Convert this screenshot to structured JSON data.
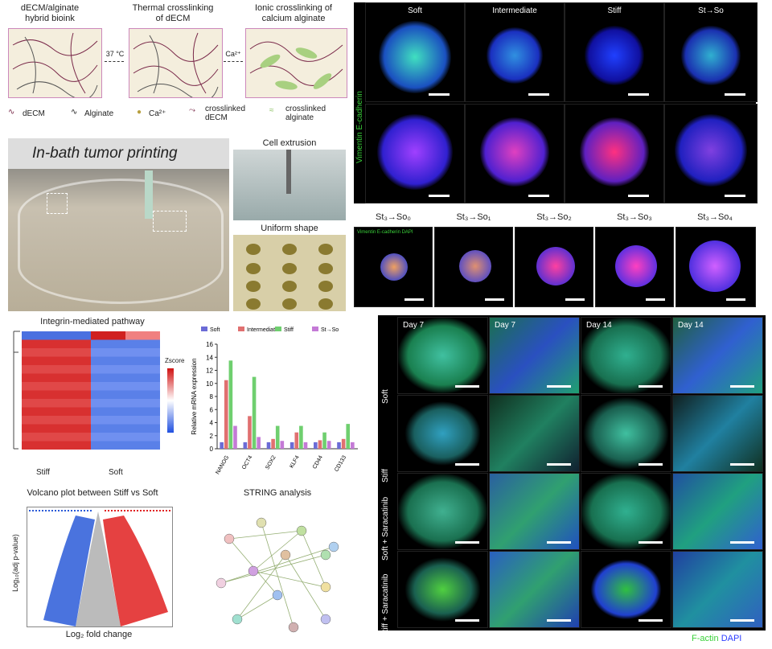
{
  "schematic": {
    "steps": [
      {
        "label": "dECM/alginate\nhybrid bioink"
      },
      {
        "label": "Thermal crosslinking\nof dECM"
      },
      {
        "label": "Ionic crosslinking of\ncalcium alginate"
      }
    ],
    "arrow1": "37 °C",
    "arrow2": "Ca²⁺",
    "legend": [
      "dECM",
      "Alginate",
      "Ca²⁺",
      "crosslinked\ndECM",
      "crosslinked\nalginate"
    ]
  },
  "printing": {
    "title": "In-bath tumor printing",
    "cell_extrusion": "Cell extrusion",
    "uniform_shape": "Uniform shape"
  },
  "emt_panel": {
    "columns": [
      "Soft",
      "Intermediate",
      "Stiff",
      "St→So"
    ],
    "side_label": "Vimentin E-cadherin"
  },
  "series_panel": {
    "columns": [
      "St₃→So₀",
      "St₃→So₁",
      "St₃→So₂",
      "St₃→So₃",
      "St₃→So₄"
    ],
    "legend": "Vimentin E-cadherin DAPI"
  },
  "heatmap": {
    "title": "Integrin-mediated pathway",
    "xlabels": [
      "Stiff",
      "Soft"
    ],
    "colorbar": "Zscore"
  },
  "chart_data": {
    "type": "bar",
    "categories": [
      "NANOG",
      "OCT4",
      "SOX2",
      "KLF4",
      "CD44",
      "CD133"
    ],
    "series": [
      {
        "name": "Soft",
        "values": [
          1,
          1,
          1,
          1,
          1,
          1
        ]
      },
      {
        "name": "Intermediate",
        "values": [
          10.5,
          5,
          1.5,
          2.5,
          1.3,
          1.5
        ]
      },
      {
        "name": "Stiff",
        "values": [
          13.5,
          11,
          3.5,
          3.5,
          2.5,
          3.8
        ]
      },
      {
        "name": "St→So",
        "values": [
          3.5,
          1.8,
          1.2,
          1,
          1.2,
          1
        ]
      }
    ],
    "ylabel": "Relative mRNA expression",
    "ylim": [
      0,
      16
    ],
    "yticks": [
      0,
      2,
      4,
      6,
      8,
      10,
      12,
      14,
      16
    ],
    "colors": [
      "#6b6bd6",
      "#e07070",
      "#6fcf6f",
      "#c47ad6"
    ],
    "legend_position": "top"
  },
  "volcano": {
    "title": "Volcano plot between Stiff vs Soft",
    "xlabel": "Log₂ fold change",
    "ylabel": "Log₁₀(adj p-value)"
  },
  "string": {
    "title": "STRING analysis"
  },
  "factin": {
    "columns": [
      "Day 7",
      "Day 7",
      "Day 14",
      "Day 14"
    ],
    "rows": [
      "Soft",
      "Stiff",
      "Soft + Saracatinib",
      "Stiff + Saracatinib"
    ],
    "legend_factin": "F-actin",
    "legend_dapi": "DAPI"
  },
  "colors": {
    "green": "#3ad13a",
    "blue": "#2c3cff",
    "red": "#e02020",
    "cyan": "#30c0b0"
  }
}
